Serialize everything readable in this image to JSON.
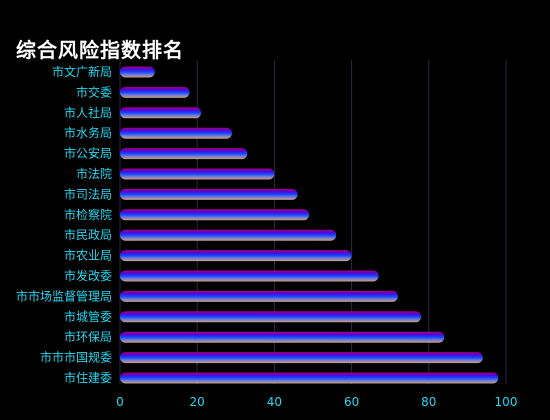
{
  "chart_data": {
    "type": "bar",
    "orientation": "horizontal",
    "title": "综合风险指数排名",
    "categories": [
      "市文广新局",
      "市交委",
      "市人社局",
      "市水务局",
      "市公安局",
      "市法院",
      "市司法局",
      "市检察院",
      "市民政局",
      "市农业局",
      "市发改委",
      "市市场监督管理局",
      "市城管委",
      "市环保局",
      "市市市国规委",
      "市住建委"
    ],
    "values": [
      9,
      18,
      21,
      29,
      33,
      40,
      46,
      49,
      56,
      60,
      67,
      72,
      78,
      84,
      94,
      98
    ],
    "xlim": [
      0,
      100
    ],
    "xticks": [
      0,
      20,
      40,
      60,
      80,
      100
    ],
    "grid": true,
    "bar_colors": [
      "#a0007a",
      "#5a00d8",
      "#0a4cff",
      "#7a7ad6",
      "#c8a078"
    ],
    "label_color": "#27d6f0",
    "grid_color": "#2a2a44",
    "background": "#000000"
  }
}
